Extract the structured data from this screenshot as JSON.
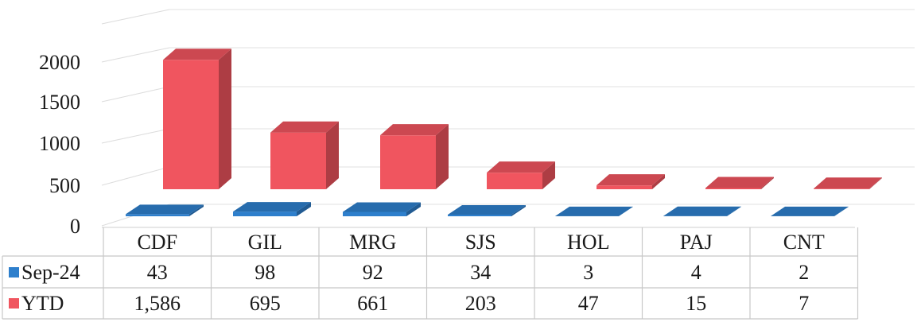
{
  "chart_data": {
    "type": "bar",
    "style": "3d-clustered-column-with-data-table",
    "categories": [
      "CDF",
      "GIL",
      "MRG",
      "SJS",
      "HOL",
      "PAJ",
      "CNT"
    ],
    "series": [
      {
        "name": "Sep-24",
        "color": "#2e7fcc",
        "values": [
          43,
          98,
          92,
          34,
          3,
          4,
          2
        ],
        "labels": [
          "43",
          "98",
          "92",
          "34",
          "3",
          "4",
          "2"
        ]
      },
      {
        "name": "YTD",
        "color": "#f0555f",
        "values": [
          1586,
          695,
          661,
          203,
          47,
          15,
          7
        ],
        "labels": [
          "1,586",
          "695",
          "661",
          "203",
          "47",
          "15",
          "7"
        ]
      }
    ],
    "yticks": [
      "0",
      "500",
      "1000",
      "1500",
      "2000"
    ],
    "ylim": [
      0,
      2000
    ],
    "title": "",
    "xlabel": "",
    "ylabel": "",
    "grid": true,
    "legend": "data-table-left"
  }
}
